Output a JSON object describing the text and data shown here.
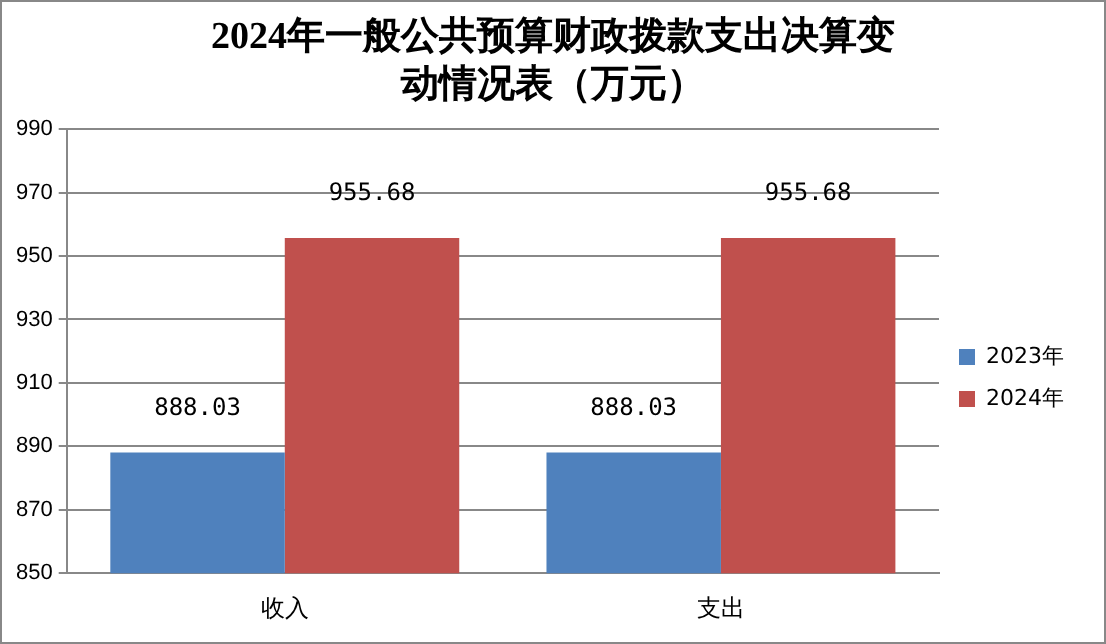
{
  "chart_data": {
    "type": "bar",
    "title": "2024年一般公共预算财政拨款支出决算变动情况表（万元）",
    "categories": [
      "收入",
      "支出"
    ],
    "series": [
      {
        "name": "2023年",
        "color": "#4f81bd",
        "values": [
          888.03,
          888.03
        ]
      },
      {
        "name": "2024年",
        "color": "#c0504d",
        "values": [
          955.68,
          955.68
        ]
      }
    ],
    "ylim": [
      850,
      990
    ],
    "yticks": [
      850,
      870,
      890,
      910,
      930,
      950,
      970,
      990
    ],
    "grid": "y",
    "legend": "right",
    "data_labels": true
  }
}
